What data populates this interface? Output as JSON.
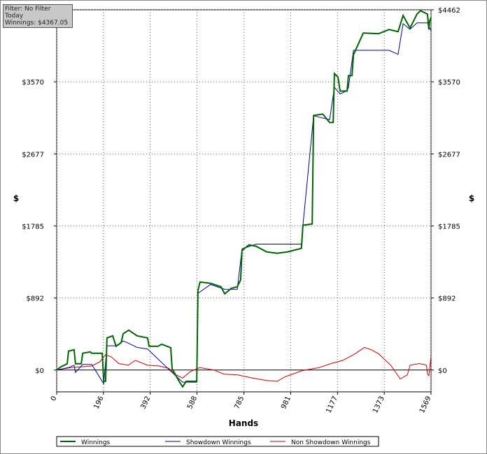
{
  "chart_data": {
    "type": "line",
    "annotations": [
      "Filter: No Filter",
      "Today",
      "Winnings: $4367.05"
    ],
    "xlabel": "Hands",
    "ylabel": "$",
    "y2label": "$",
    "xlim": [
      0,
      1569
    ],
    "xticks": [
      0,
      196,
      392,
      588,
      785,
      981,
      1177,
      1373,
      1569
    ],
    "ylim": [
      -270,
      4462
    ],
    "yticks": [
      {
        "value": 0,
        "label": "$0"
      },
      {
        "value": 892,
        "label": "$892"
      },
      {
        "value": 1785,
        "label": "$1785"
      },
      {
        "value": 2677,
        "label": "$2677"
      },
      {
        "value": 3570,
        "label": "$3570"
      },
      {
        "value": 4462,
        "label": "$4462"
      }
    ],
    "grid": true,
    "series": [
      {
        "name": "Winnings",
        "color": "#006400",
        "x": [
          0,
          15,
          44,
          50,
          73,
          79,
          103,
          109,
          141,
          147,
          191,
          197,
          205,
          211,
          235,
          249,
          270,
          279,
          302,
          337,
          381,
          387,
          425,
          440,
          478,
          484,
          513,
          528,
          543,
          572,
          587,
          592,
          601,
          645,
          689,
          704,
          733,
          757,
          771,
          777,
          806,
          836,
          880,
          924,
          968,
          1026,
          1032,
          1071,
          1077,
          1115,
          1144,
          1159,
          1164,
          1179,
          1188,
          1217,
          1223,
          1238,
          1244,
          1285,
          1349,
          1393,
          1431,
          1452,
          1481,
          1510,
          1525,
          1554,
          1560,
          1563,
          1569
        ],
        "values": [
          0,
          35,
          78,
          234,
          251,
          78,
          78,
          208,
          225,
          208,
          208,
          -139,
          -139,
          398,
          424,
          294,
          338,
          450,
          494,
          424,
          398,
          294,
          294,
          320,
          277,
          17,
          -139,
          -208,
          -139,
          -139,
          -139,
          987,
          1091,
          1074,
          1031,
          944,
          1013,
          1031,
          1118,
          1481,
          1550,
          1533,
          1464,
          1446,
          1464,
          1507,
          1793,
          1810,
          3152,
          3170,
          3066,
          3066,
          3672,
          3628,
          3455,
          3455,
          3646,
          3646,
          3906,
          4174,
          4165,
          4217,
          4191,
          4391,
          4235,
          4408,
          4451,
          4408,
          4217,
          4321,
          4367.05
        ]
      },
      {
        "name": "Showdown Winnings",
        "color": "#000099",
        "x": [
          0,
          50,
          73,
          79,
          109,
          147,
          197,
          211,
          249,
          279,
          302,
          337,
          381,
          484,
          528,
          587,
          592,
          645,
          704,
          757,
          777,
          836,
          880,
          968,
          1026,
          1032,
          1077,
          1144,
          1164,
          1188,
          1217,
          1223,
          1244,
          1285,
          1349,
          1393,
          1431,
          1452,
          1481,
          1510,
          1554,
          1569
        ],
        "values": [
          0,
          30,
          60,
          -30,
          70,
          70,
          -170,
          300,
          300,
          360,
          330,
          280,
          260,
          -30,
          -150,
          -150,
          950,
          1060,
          1000,
          1000,
          1500,
          1560,
          1560,
          1560,
          1560,
          1790,
          3150,
          3100,
          3500,
          3420,
          3460,
          3500,
          3960,
          3960,
          3960,
          3960,
          3910,
          4290,
          4220,
          4300,
          4300,
          4200
        ]
      },
      {
        "name": "Non Showdown Winnings",
        "color": "#cc0000",
        "x": [
          0,
          60,
          100,
          147,
          180,
          205,
          230,
          260,
          300,
          330,
          380,
          430,
          470,
          500,
          528,
          560,
          600,
          660,
          700,
          760,
          820,
          880,
          924,
          960,
          1000,
          1026,
          1100,
          1150,
          1200,
          1250,
          1290,
          1320,
          1350,
          1400,
          1440,
          1470,
          1481,
          1520,
          1550,
          1554,
          1560,
          1569
        ],
        "values": [
          0,
          30,
          40,
          50,
          100,
          190,
          160,
          80,
          60,
          120,
          60,
          50,
          20,
          -60,
          -100,
          -20,
          30,
          0,
          -50,
          -60,
          -100,
          -130,
          -140,
          -80,
          -40,
          -10,
          30,
          80,
          120,
          200,
          280,
          250,
          200,
          60,
          -110,
          -60,
          60,
          80,
          60,
          -50,
          -70,
          170
        ]
      }
    ]
  }
}
